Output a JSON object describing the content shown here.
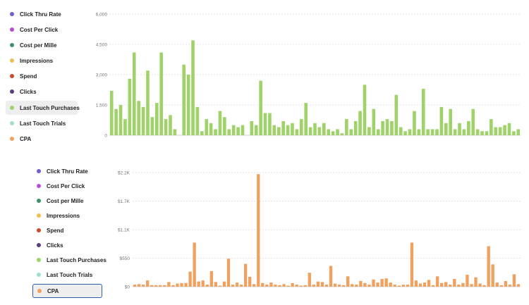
{
  "panels": [
    {
      "metrics": [
        {
          "label": "Click Thru Rate",
          "color": "#6f5fcf"
        },
        {
          "label": "Cost Per Click",
          "color": "#b44fd0"
        },
        {
          "label": "Cost per Mille",
          "color": "#3f8f6a"
        },
        {
          "label": "Impressions",
          "color": "#efc04f"
        },
        {
          "label": "Spend",
          "color": "#c8492f"
        },
        {
          "label": "Clicks",
          "color": "#5b3e7e"
        },
        {
          "label": "Last Touch Purchases",
          "color": "#9fd36a"
        },
        {
          "label": "Last Touch Trials",
          "color": "#9ee0c8"
        },
        {
          "label": "CPA",
          "color": "#f0a15f"
        }
      ],
      "selected_metric": "Last Touch Purchases"
    },
    {
      "metrics": [
        {
          "label": "Click Thru Rate",
          "color": "#6f5fcf"
        },
        {
          "label": "Cost Per Click",
          "color": "#b44fd0"
        },
        {
          "label": "Cost per Mille",
          "color": "#3f8f6a"
        },
        {
          "label": "Impressions",
          "color": "#efc04f"
        },
        {
          "label": "Spend",
          "color": "#c8492f"
        },
        {
          "label": "Clicks",
          "color": "#5b3e7e"
        },
        {
          "label": "Last Touch Purchases",
          "color": "#9fd36a"
        },
        {
          "label": "Last Touch Trials",
          "color": "#9ee0c8"
        },
        {
          "label": "CPA",
          "color": "#f0a15f"
        }
      ],
      "selected_metric": "CPA"
    }
  ],
  "chart_data": [
    {
      "type": "bar",
      "series_name": "Last Touch Purchases",
      "color": "#9fd36a",
      "ylim": [
        0,
        6000
      ],
      "yticks": [
        0,
        1500,
        3000,
        4500,
        6000
      ],
      "ytick_labels": [
        "0",
        "1,500",
        "3,000",
        "4,500",
        "6,000"
      ],
      "grid": true,
      "values": [
        2200,
        1300,
        1500,
        800,
        2800,
        4100,
        1700,
        1400,
        3200,
        900,
        1600,
        4100,
        800,
        1000,
        300,
        0,
        3500,
        3000,
        4700,
        1400,
        200,
        800,
        600,
        300,
        1200,
        900,
        300,
        500,
        400,
        500,
        0,
        700,
        500,
        2700,
        1100,
        1100,
        500,
        400,
        700,
        500,
        600,
        300,
        800,
        1600,
        400,
        600,
        400,
        600,
        300,
        200,
        300,
        100,
        800,
        300,
        700,
        1200,
        2500,
        400,
        1300,
        300,
        700,
        800,
        700,
        2000,
        400,
        200,
        300,
        1200,
        300,
        2300,
        300,
        300,
        300,
        1400,
        600,
        1300,
        300,
        600,
        300,
        700,
        1300,
        300,
        200,
        200,
        800,
        400,
        400,
        500,
        600,
        200,
        300
      ]
    },
    {
      "type": "bar",
      "series_name": "CPA",
      "color": "#f0a15f",
      "ylim": [
        0,
        2200
      ],
      "yticks": [
        0,
        550,
        1100,
        1650,
        2200
      ],
      "ytick_labels": [
        "$0",
        "$550",
        "$1.1K",
        "$1.7K",
        "$2.2K"
      ],
      "grid": true,
      "values": [
        40,
        50,
        40,
        120,
        30,
        30,
        30,
        30,
        90,
        30,
        60,
        70,
        70,
        290,
        850,
        100,
        120,
        40,
        300,
        90,
        20,
        100,
        540,
        40,
        80,
        40,
        440,
        190,
        50,
        2170,
        70,
        40,
        80,
        40,
        30,
        50,
        20,
        70,
        40,
        20,
        30,
        270,
        40,
        100,
        90,
        40,
        400,
        60,
        40,
        30,
        200,
        50,
        40,
        110,
        70,
        40,
        140,
        80,
        150,
        160,
        80,
        40,
        20,
        40,
        40,
        850,
        120,
        60,
        80,
        130,
        30,
        200,
        70,
        90,
        40,
        150,
        40,
        70,
        230,
        50,
        180,
        60,
        30,
        780,
        430,
        80,
        30,
        110,
        40,
        240,
        50
      ]
    }
  ]
}
